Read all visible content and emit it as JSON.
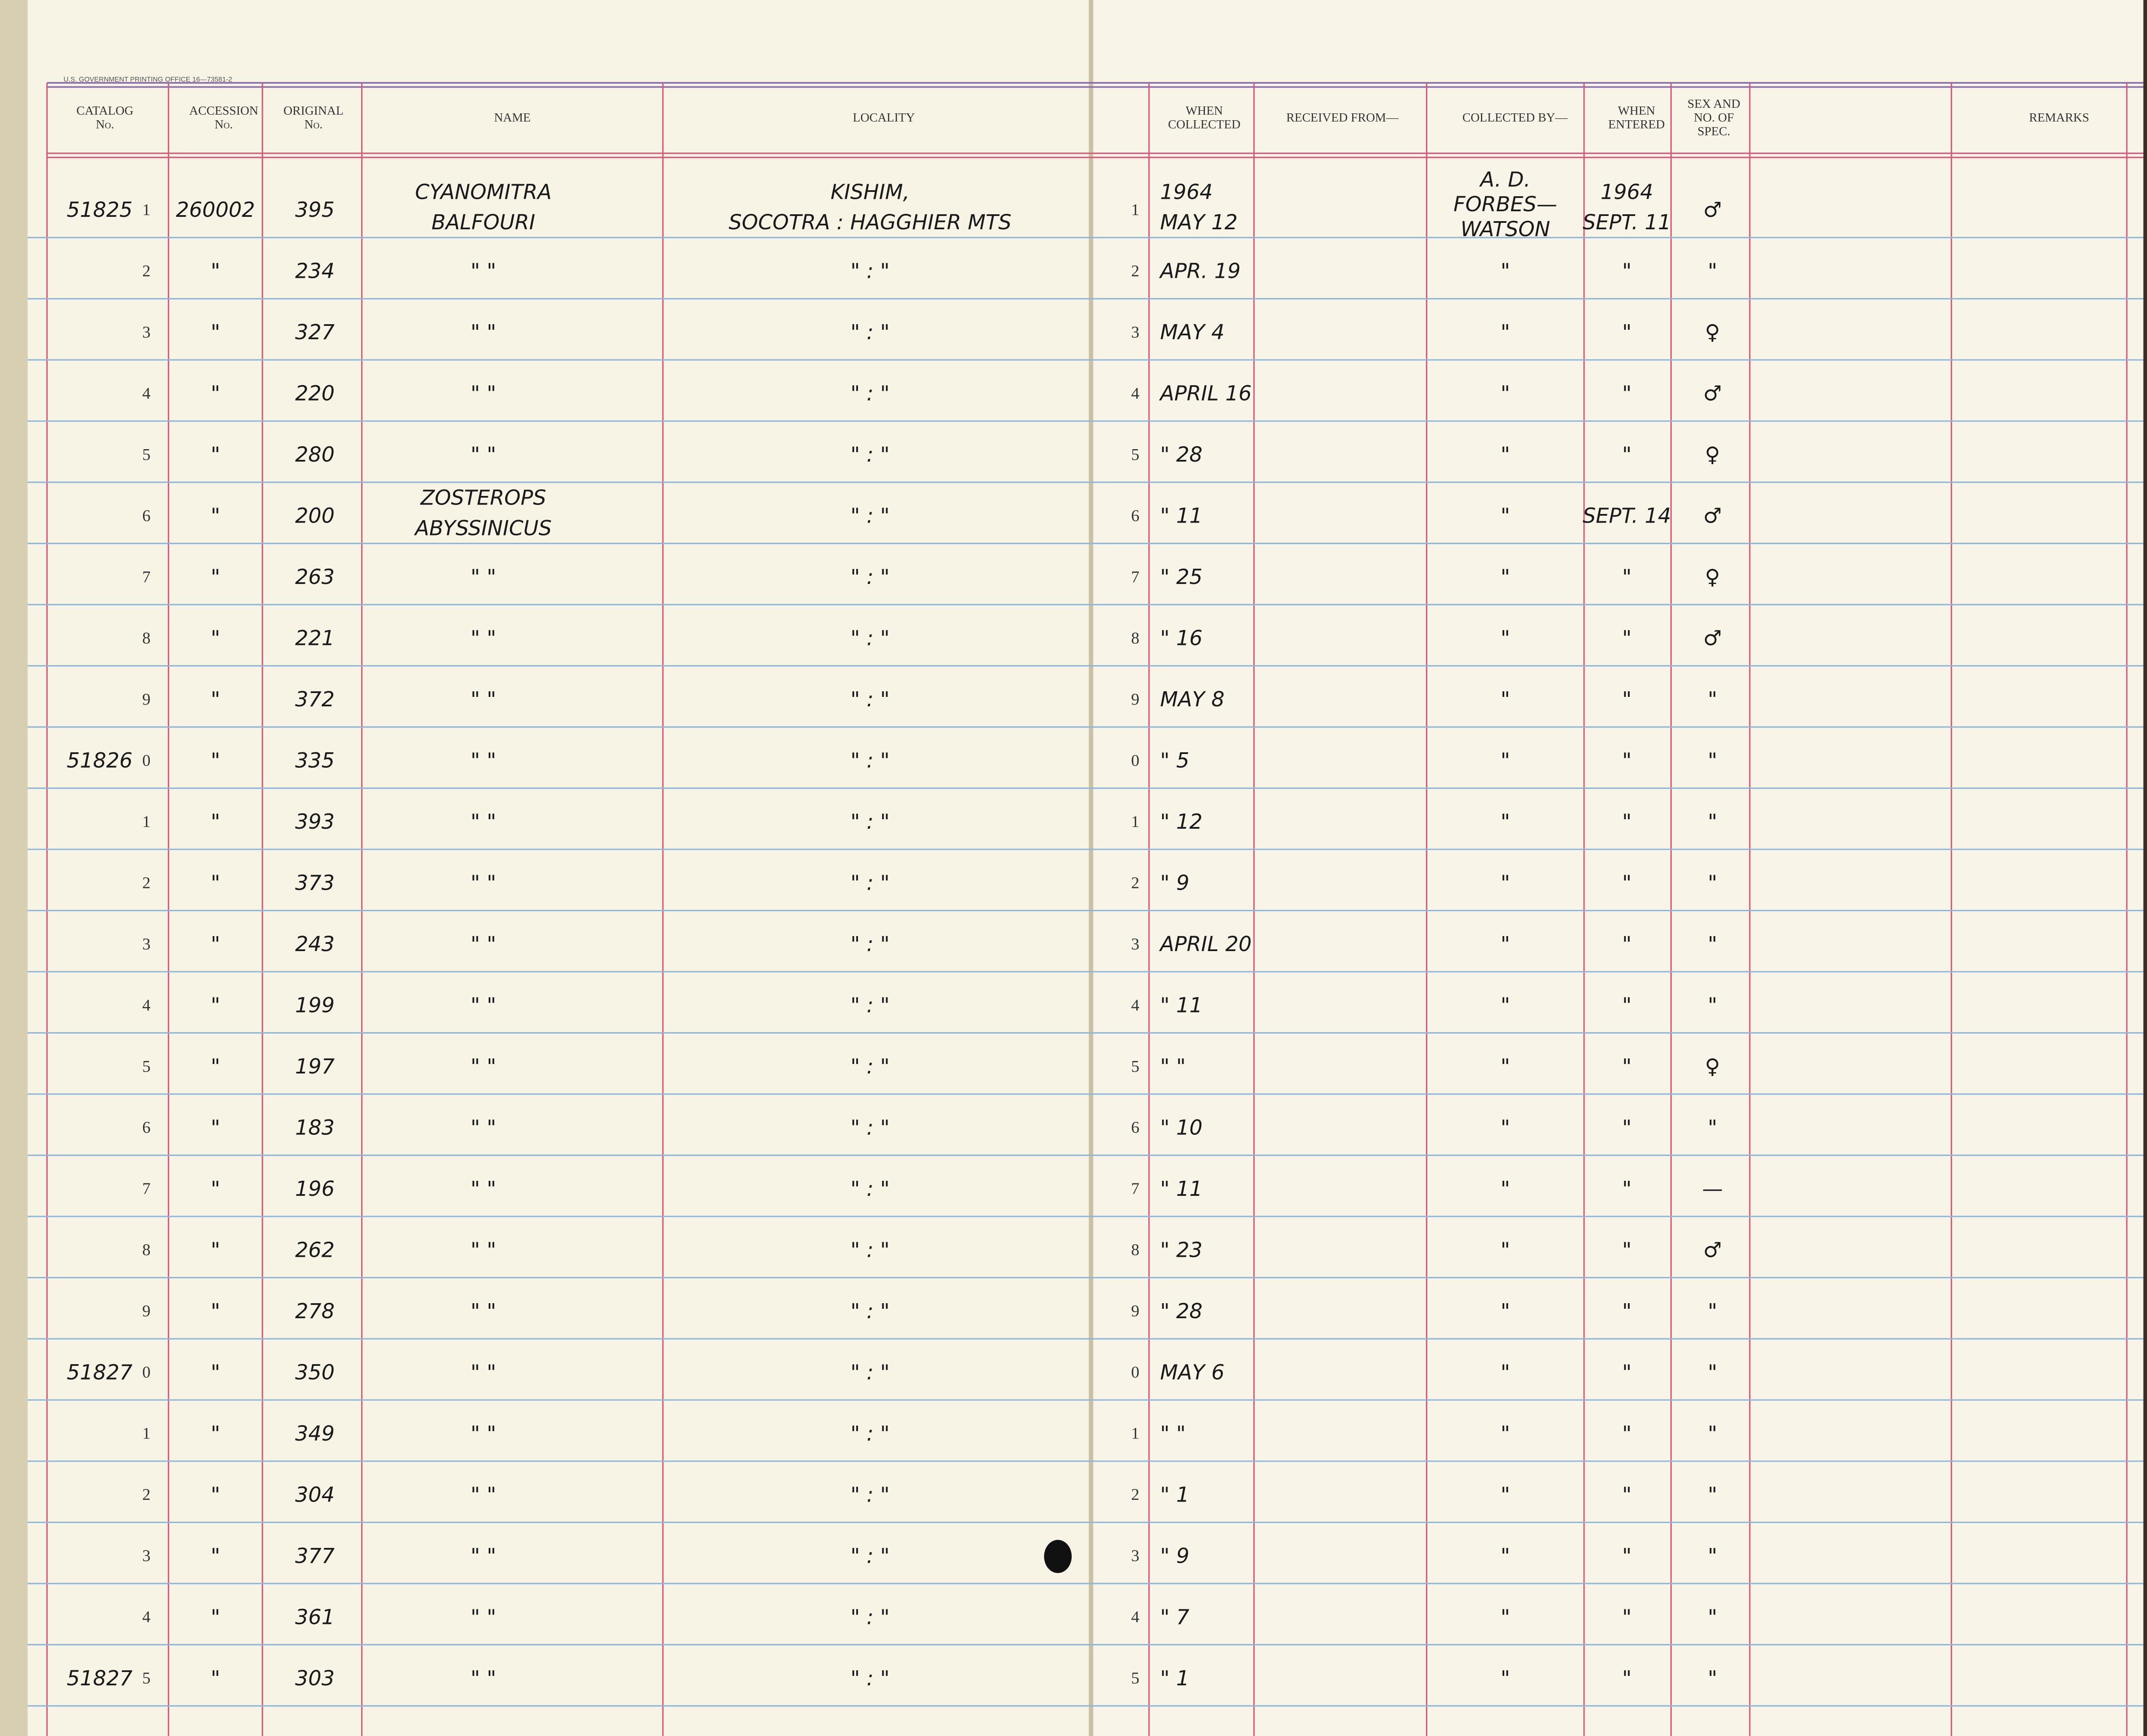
{
  "printer": "U.S. GOVERNMENT PRINTING OFFICE 16—73581-2",
  "header": [
    [
      "CATALOG",
      "No."
    ],
    [
      "ACCESSION",
      "No."
    ],
    [
      "ORIGINAL",
      "No."
    ],
    [
      "NAME"
    ],
    [
      "LOCALITY"
    ],
    [
      "WHEN",
      "COLLECTED"
    ],
    [
      "RECEIVED FROM—"
    ],
    [
      "COLLECTED BY—"
    ],
    [
      "WHEN",
      "ENTERED"
    ],
    [
      "SEX AND",
      "NO. OF",
      "SPEC."
    ],
    [
      "REMARKS"
    ]
  ],
  "rows": [
    {
      "cat": "51825",
      "n": "1",
      "acc": "260002",
      "orig": "395",
      "name": [
        "CYANOMITRA",
        "BALFOURI"
      ],
      "loc": [
        "KISHIM,",
        "SOCOTRA : HAGGHIER MTS"
      ],
      "n2": "1",
      "when": [
        "1964",
        "MAY 12"
      ],
      "by": [
        "A. D.",
        "FORBES—",
        "WATSON"
      ],
      "ent": [
        "1964",
        "SEPT. 11"
      ],
      "sex": "♂"
    },
    {
      "n": "2",
      "acc": "\"",
      "orig": "234",
      "name": "\"    \"",
      "loc": "\"  :  \"",
      "n2": "2",
      "when": "APR. 19",
      "by": "\"",
      "ent": "\"",
      "sex": "\""
    },
    {
      "n": "3",
      "acc": "\"",
      "orig": "327",
      "name": "\"    \"",
      "loc": "\"  :  \"",
      "n2": "3",
      "when": "MAY 4",
      "by": "\"",
      "ent": "\"",
      "sex": "♀"
    },
    {
      "n": "4",
      "acc": "\"",
      "orig": "220",
      "name": "\"    \"",
      "loc": "\"  :  \"",
      "n2": "4",
      "when": "APRIL 16",
      "by": "\"",
      "ent": "\"",
      "sex": "♂"
    },
    {
      "n": "5",
      "acc": "\"",
      "orig": "280",
      "name": "\"    \"",
      "loc": "\"  :  \"",
      "n2": "5",
      "when": "\" 28",
      "by": "\"",
      "ent": "\"",
      "sex": "♀"
    },
    {
      "n": "6",
      "acc": "\"",
      "orig": "200",
      "name": [
        "ZOSTEROPS",
        "ABYSSINICUS"
      ],
      "loc": "\"  :  \"",
      "n2": "6",
      "when": "\" 11",
      "by": "\"",
      "ent": "SEPT. 14",
      "sex": "♂"
    },
    {
      "n": "7",
      "acc": "\"",
      "orig": "263",
      "name": "\"    \"",
      "loc": "\"  :  \"",
      "n2": "7",
      "when": "\" 25",
      "by": "\"",
      "ent": "\"",
      "sex": "♀"
    },
    {
      "n": "8",
      "acc": "\"",
      "orig": "221",
      "name": "\"    \"",
      "loc": "\"  :  \"",
      "n2": "8",
      "when": "\" 16",
      "by": "\"",
      "ent": "\"",
      "sex": "♂"
    },
    {
      "n": "9",
      "acc": "\"",
      "orig": "372",
      "name": "\"    \"",
      "loc": "\"  :  \"",
      "n2": "9",
      "when": "MAY 8",
      "by": "\"",
      "ent": "\"",
      "sex": "\""
    },
    {
      "cat": "51826",
      "n": "0",
      "acc": "\"",
      "orig": "335",
      "name": "\"    \"",
      "loc": "\"  :  \"",
      "n2": "0",
      "when": "\" 5",
      "by": "\"",
      "ent": "\"",
      "sex": "\""
    },
    {
      "n": "1",
      "acc": "\"",
      "orig": "393",
      "name": "\"    \"",
      "loc": "\"  :  \"",
      "n2": "1",
      "when": "\" 12",
      "by": "\"",
      "ent": "\"",
      "sex": "\""
    },
    {
      "n": "2",
      "acc": "\"",
      "orig": "373",
      "name": "\"    \"",
      "loc": "\"  :  \"",
      "n2": "2",
      "when": "\" 9",
      "by": "\"",
      "ent": "\"",
      "sex": "\""
    },
    {
      "n": "3",
      "acc": "\"",
      "orig": "243",
      "name": "\"    \"",
      "loc": "\"  :  \"",
      "n2": "3",
      "when": "APRIL 20",
      "by": "\"",
      "ent": "\"",
      "sex": "\""
    },
    {
      "n": "4",
      "acc": "\"",
      "orig": "199",
      "name": "\"    \"",
      "loc": "\"  :  \"",
      "n2": "4",
      "when": "\" 11",
      "by": "\"",
      "ent": "\"",
      "sex": "\""
    },
    {
      "n": "5",
      "acc": "\"",
      "orig": "197",
      "name": "\"    \"",
      "loc": "\"  :  \"",
      "n2": "5",
      "when": "\"  \"",
      "by": "\"",
      "ent": "\"",
      "sex": "♀"
    },
    {
      "n": "6",
      "acc": "\"",
      "orig": "183",
      "name": "\"    \"",
      "loc": "\"  :  \"",
      "n2": "6",
      "when": "\" 10",
      "by": "\"",
      "ent": "\"",
      "sex": "\""
    },
    {
      "n": "7",
      "acc": "\"",
      "orig": "196",
      "name": "\"    \"",
      "loc": "\"  :  \"",
      "n2": "7",
      "when": "\" 11",
      "by": "\"",
      "ent": "\"",
      "sex": "—"
    },
    {
      "n": "8",
      "acc": "\"",
      "orig": "262",
      "name": "\"    \"",
      "loc": "\"  :  \"",
      "n2": "8",
      "when": "\" 23",
      "by": "\"",
      "ent": "\"",
      "sex": "♂"
    },
    {
      "n": "9",
      "acc": "\"",
      "orig": "278",
      "name": "\"    \"",
      "loc": "\"  :  \"",
      "n2": "9",
      "when": "\" 28",
      "by": "\"",
      "ent": "\"",
      "sex": "\""
    },
    {
      "cat": "51827",
      "n": "0",
      "acc": "\"",
      "orig": "350",
      "name": "\"    \"",
      "loc": "\"  :  \"",
      "n2": "0",
      "when": "MAY 6",
      "by": "\"",
      "ent": "\"",
      "sex": "\""
    },
    {
      "n": "1",
      "acc": "\"",
      "orig": "349",
      "name": "\"    \"",
      "loc": "\"  :  \"",
      "n2": "1",
      "when": "\"  \"",
      "by": "\"",
      "ent": "\"",
      "sex": "\""
    },
    {
      "n": "2",
      "acc": "\"",
      "orig": "304",
      "name": "\"    \"",
      "loc": "\"  :  \"",
      "n2": "2",
      "when": "\" 1",
      "by": "\"",
      "ent": "\"",
      "sex": "\""
    },
    {
      "n": "3",
      "acc": "\"",
      "orig": "377",
      "name": "\"    \"",
      "loc": "\"  :  \"",
      "n2": "3",
      "when": "\" 9",
      "by": "\"",
      "ent": "\"",
      "sex": "\""
    },
    {
      "n": "4",
      "acc": "\"",
      "orig": "361",
      "name": "\"    \"",
      "loc": "\"  :  \"",
      "n2": "4",
      "when": "\" 7",
      "by": "\"",
      "ent": "\"",
      "sex": "\""
    },
    {
      "cat": "51827",
      "n": "5",
      "acc": "\"",
      "orig": "303",
      "name": "\"    \"",
      "loc": "\"  :  \"",
      "n2": "5",
      "when": "\" 1",
      "by": "\"",
      "ent": "\"",
      "sex": "\""
    }
  ]
}
